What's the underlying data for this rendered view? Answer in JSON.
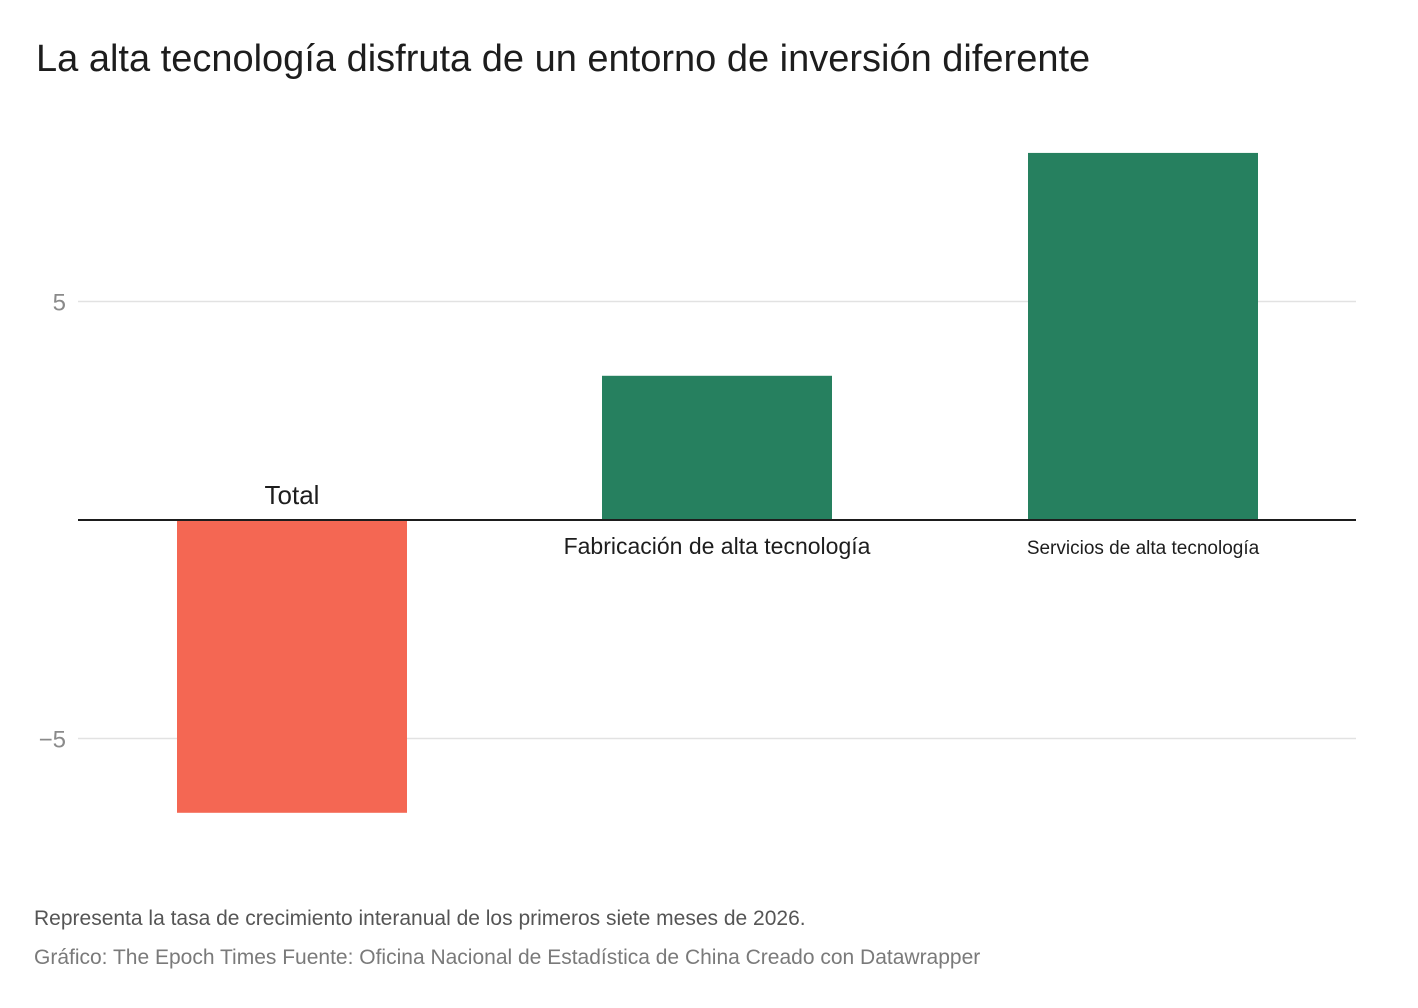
{
  "title": "La alta tecnología disfruta de un entorno de inversión diferente",
  "notes": "Representa la tasa de crecimiento interanual de los primeros siete meses de 2026.",
  "source_line": "Gráfico: The Epoch Times Fuente: Oficina Nacional de Estadística de China Creado con Datawrapper",
  "chart_data": {
    "type": "bar",
    "categories": [
      "Total",
      "Fabricación de alta tecnología",
      "Servicios de alta tecnología"
    ],
    "values": [
      -6.7,
      3.3,
      8.4
    ],
    "yticks": [
      5,
      -5
    ],
    "ytick_labels": [
      "5",
      "−5"
    ],
    "ylim": [
      -7.5,
      9.8
    ],
    "colors": {
      "positive": "#26805f",
      "negative": "#f46753",
      "gridline": "#e2e2e2",
      "baseline": "#1d1d1d"
    },
    "grid": true,
    "xlabel": "",
    "ylabel": ""
  }
}
